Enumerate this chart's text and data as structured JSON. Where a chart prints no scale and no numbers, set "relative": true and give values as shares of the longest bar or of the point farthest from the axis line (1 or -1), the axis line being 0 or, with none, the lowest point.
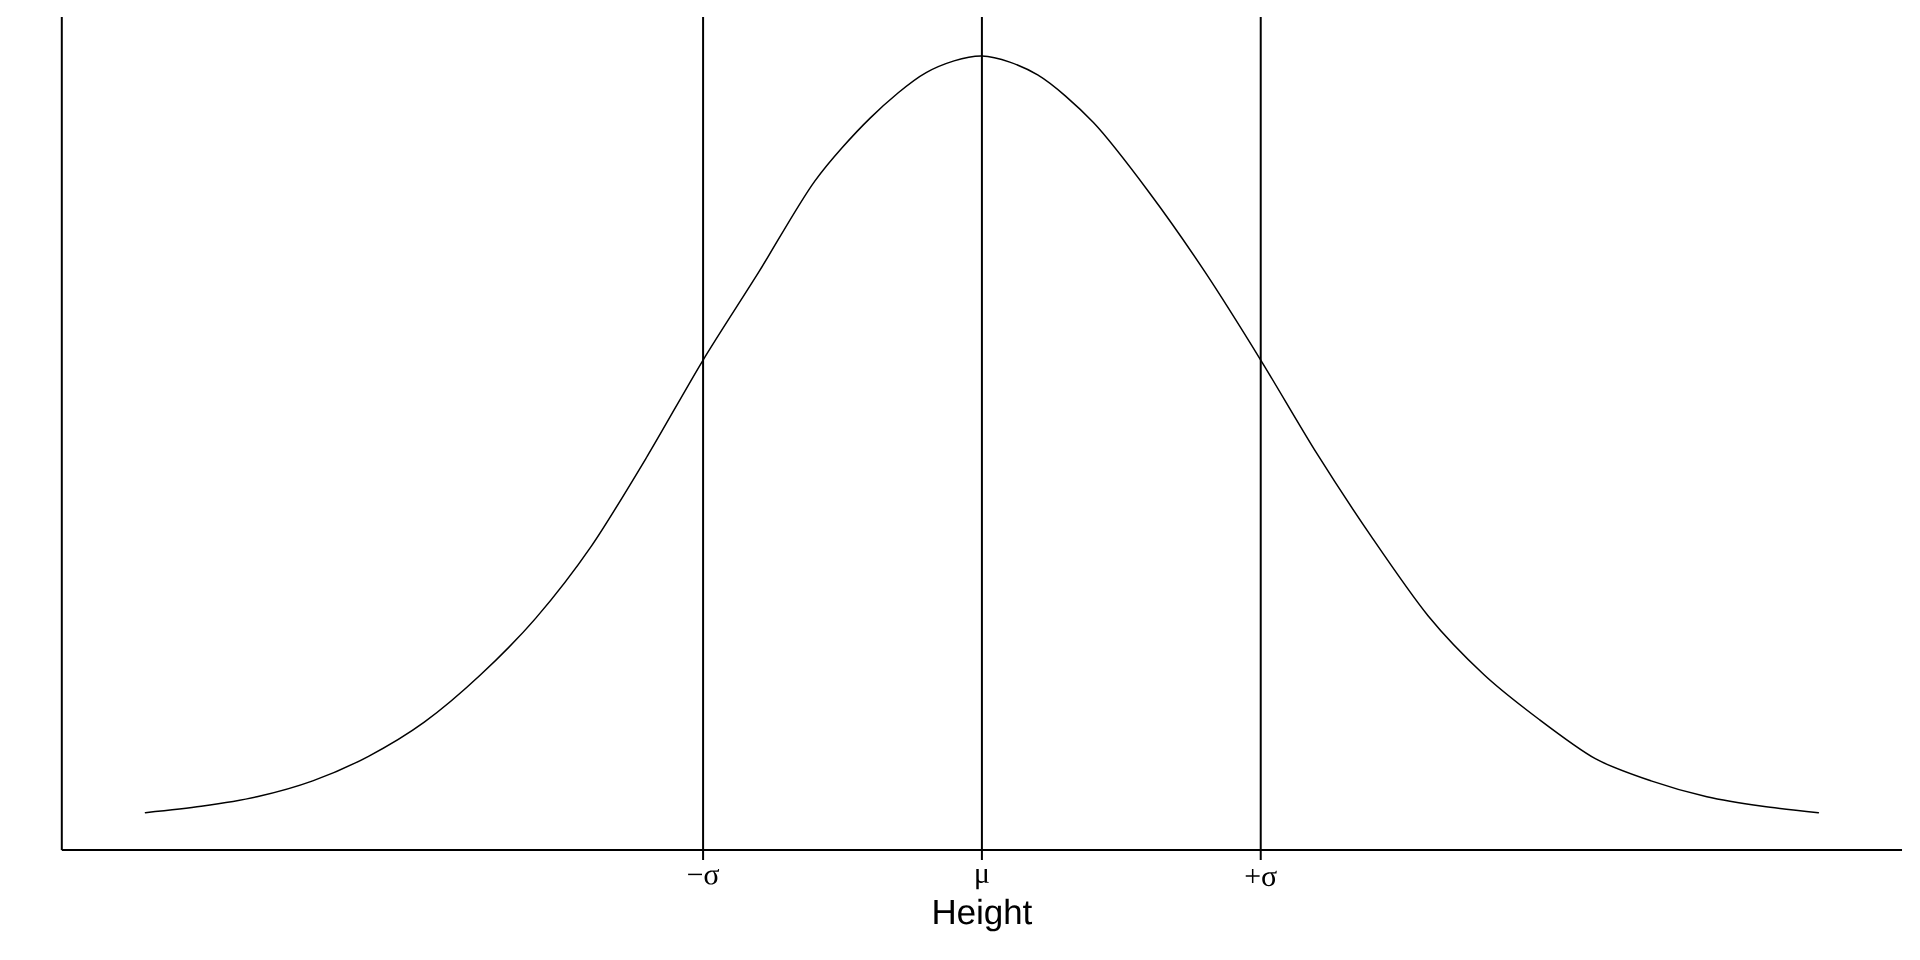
{
  "chart_data": {
    "type": "line",
    "xlabel": "Height",
    "relative": true,
    "categories": [
      null,
      null,
      null,
      null,
      null,
      null,
      null,
      null,
      null,
      null,
      "−σ",
      null,
      null,
      null,
      null,
      "μ",
      null,
      null,
      null,
      null,
      "+σ",
      null,
      null,
      null,
      null,
      null,
      null,
      null,
      null,
      null,
      null
    ],
    "values": [
      0.047,
      0.055,
      0.067,
      0.087,
      0.118,
      0.161,
      0.22,
      0.292,
      0.383,
      0.496,
      0.617,
      0.728,
      0.842,
      0.922,
      0.979,
      1.0,
      0.976,
      0.916,
      0.828,
      0.728,
      0.617,
      0.5,
      0.393,
      0.295,
      0.221,
      0.164,
      0.115,
      0.087,
      0.067,
      0.055,
      0.047
    ],
    "color": "#000000",
    "line_style": "solid",
    "ref_lines": [
      {
        "axis": "x",
        "value": "−σ"
      },
      {
        "axis": "x",
        "value": "μ"
      },
      {
        "axis": "x",
        "value": "+σ"
      }
    ],
    "tick_labels": "x"
  }
}
